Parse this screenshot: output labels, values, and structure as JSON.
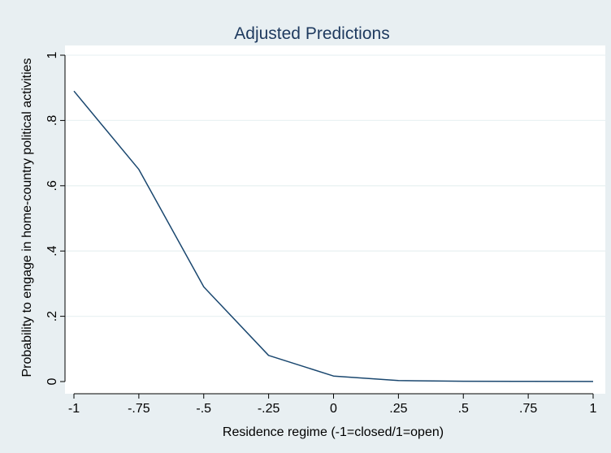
{
  "chart_data": {
    "type": "line",
    "title": "Adjusted Predictions",
    "xlabel": "Residence regime (-1=closed/1=open)",
    "ylabel": "Probability to engage in home-country political activities",
    "xlim": [
      -1,
      1
    ],
    "ylim": [
      0,
      1
    ],
    "x_ticks": [
      {
        "value": -1,
        "label": "-1"
      },
      {
        "value": -0.75,
        "label": "-.75"
      },
      {
        "value": -0.5,
        "label": "-.5"
      },
      {
        "value": -0.25,
        "label": "-.25"
      },
      {
        "value": 0,
        "label": "0"
      },
      {
        "value": 0.25,
        "label": ".25"
      },
      {
        "value": 0.5,
        "label": ".5"
      },
      {
        "value": 0.75,
        "label": ".75"
      },
      {
        "value": 1,
        "label": "1"
      }
    ],
    "y_ticks": [
      {
        "value": 0,
        "label": "0"
      },
      {
        "value": 0.2,
        "label": ".2"
      },
      {
        "value": 0.4,
        "label": ".4"
      },
      {
        "value": 0.6,
        "label": ".6"
      },
      {
        "value": 0.8,
        "label": ".8"
      },
      {
        "value": 1,
        "label": "1"
      }
    ],
    "grid": true,
    "colors": {
      "line": "#1a476f",
      "plot_bg": "#ffffff",
      "outer_bg": "#e8eff2",
      "grid": "#eaf2f3"
    },
    "series": [
      {
        "x": [
          -1,
          -0.75,
          -0.5,
          -0.25,
          0,
          0.25,
          0.5,
          0.75,
          1
        ],
        "values": [
          0.89,
          0.65,
          0.29,
          0.08,
          0.017,
          0.003,
          0.001,
          0.0005,
          0.0002
        ]
      }
    ]
  }
}
